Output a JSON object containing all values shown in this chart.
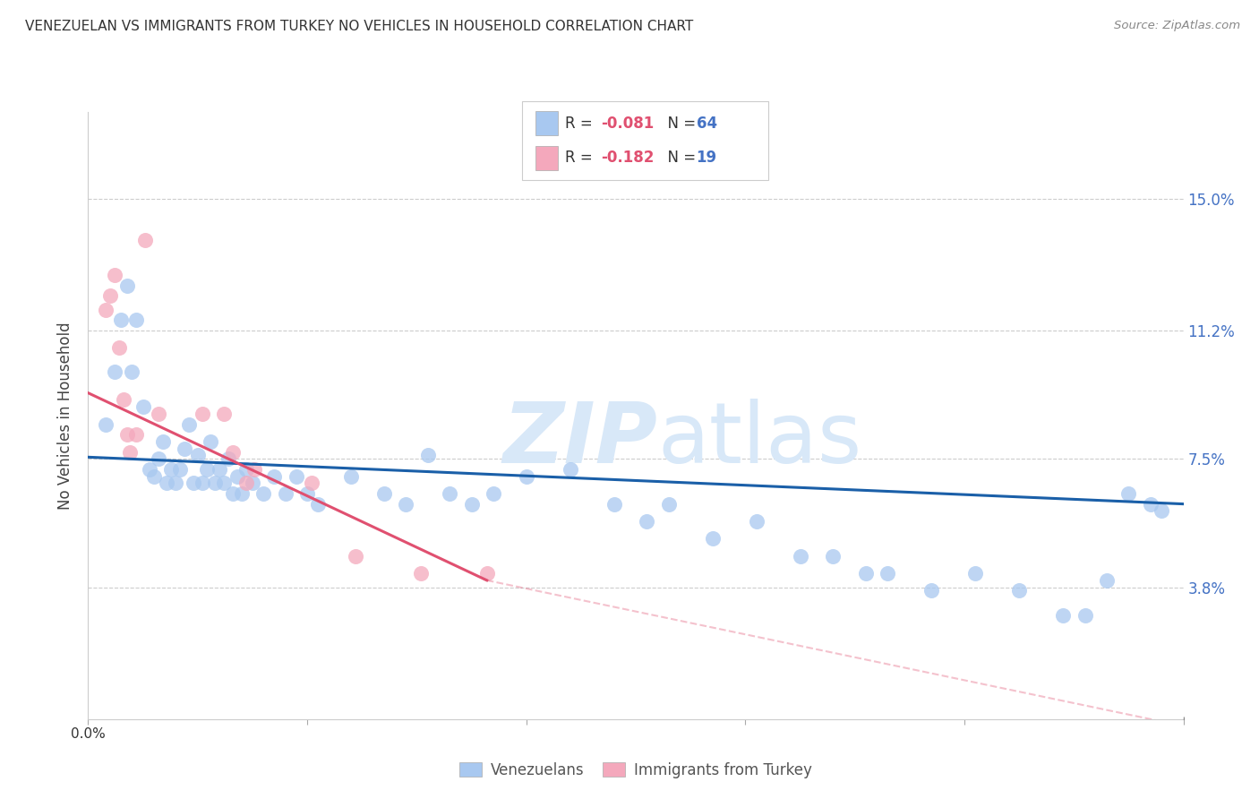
{
  "title": "VENEZUELAN VS IMMIGRANTS FROM TURKEY NO VEHICLES IN HOUSEHOLD CORRELATION CHART",
  "source": "Source: ZipAtlas.com",
  "ylabel": "No Vehicles in Household",
  "ytick_labels": [
    "15.0%",
    "11.2%",
    "7.5%",
    "3.8%"
  ],
  "ytick_values": [
    0.15,
    0.112,
    0.075,
    0.038
  ],
  "xlim": [
    0.0,
    0.5
  ],
  "ylim": [
    0.0,
    0.175
  ],
  "legend_label_blue": "Venezuelans",
  "legend_label_pink": "Immigrants from Turkey",
  "blue_color": "#a8c8f0",
  "pink_color": "#f4a8bc",
  "trendline_blue_color": "#1a5fa8",
  "trendline_pink_color": "#e05070",
  "watermark_color": "#d8e8f8",
  "background_color": "#ffffff",
  "blue_scatter_x": [
    0.008,
    0.012,
    0.015,
    0.018,
    0.02,
    0.022,
    0.025,
    0.028,
    0.03,
    0.032,
    0.034,
    0.036,
    0.038,
    0.04,
    0.042,
    0.044,
    0.046,
    0.048,
    0.05,
    0.052,
    0.054,
    0.056,
    0.058,
    0.06,
    0.062,
    0.064,
    0.066,
    0.068,
    0.07,
    0.072,
    0.075,
    0.08,
    0.085,
    0.09,
    0.095,
    0.1,
    0.105,
    0.12,
    0.135,
    0.145,
    0.155,
    0.165,
    0.175,
    0.185,
    0.2,
    0.22,
    0.24,
    0.255,
    0.265,
    0.285,
    0.305,
    0.325,
    0.34,
    0.355,
    0.365,
    0.385,
    0.405,
    0.425,
    0.445,
    0.455,
    0.465,
    0.475,
    0.485,
    0.49
  ],
  "blue_scatter_y": [
    0.085,
    0.1,
    0.115,
    0.125,
    0.1,
    0.115,
    0.09,
    0.072,
    0.07,
    0.075,
    0.08,
    0.068,
    0.072,
    0.068,
    0.072,
    0.078,
    0.085,
    0.068,
    0.076,
    0.068,
    0.072,
    0.08,
    0.068,
    0.072,
    0.068,
    0.075,
    0.065,
    0.07,
    0.065,
    0.072,
    0.068,
    0.065,
    0.07,
    0.065,
    0.07,
    0.065,
    0.062,
    0.07,
    0.065,
    0.062,
    0.076,
    0.065,
    0.062,
    0.065,
    0.07,
    0.072,
    0.062,
    0.057,
    0.062,
    0.052,
    0.057,
    0.047,
    0.047,
    0.042,
    0.042,
    0.037,
    0.042,
    0.037,
    0.03,
    0.03,
    0.04,
    0.065,
    0.062,
    0.06
  ],
  "pink_scatter_x": [
    0.008,
    0.01,
    0.012,
    0.014,
    0.016,
    0.018,
    0.019,
    0.022,
    0.026,
    0.032,
    0.052,
    0.062,
    0.066,
    0.072,
    0.076,
    0.102,
    0.122,
    0.152,
    0.182
  ],
  "pink_scatter_y": [
    0.118,
    0.122,
    0.128,
    0.107,
    0.092,
    0.082,
    0.077,
    0.082,
    0.138,
    0.088,
    0.088,
    0.088,
    0.077,
    0.068,
    0.072,
    0.068,
    0.047,
    0.042,
    0.042
  ],
  "trendline_blue_x0": 0.0,
  "trendline_blue_x1": 0.5,
  "trendline_blue_y0": 0.0755,
  "trendline_blue_y1": 0.062,
  "trendline_pink_solid_x0": 0.0,
  "trendline_pink_solid_x1": 0.182,
  "trendline_pink_solid_y0": 0.094,
  "trendline_pink_solid_y1": 0.04,
  "trendline_pink_dash_x0": 0.182,
  "trendline_pink_dash_x1": 0.5,
  "trendline_pink_dash_y0": 0.04,
  "trendline_pink_dash_y1": -0.002
}
